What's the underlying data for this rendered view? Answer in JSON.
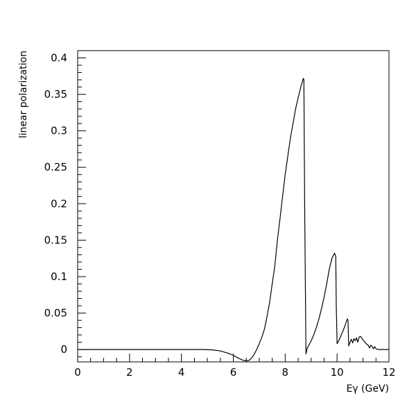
{
  "chart_data": {
    "type": "line",
    "title": "",
    "xlabel": "Eγ (GeV)",
    "ylabel": "linear polarization",
    "xlim": [
      0,
      12
    ],
    "ylim": [
      -0.017,
      0.41
    ],
    "grid": false,
    "x_ticks": [
      0,
      2,
      4,
      6,
      8,
      10,
      12
    ],
    "y_ticks": [
      0,
      0.05,
      0.1,
      0.15,
      0.2,
      0.25,
      0.3,
      0.35,
      0.4
    ],
    "x_tick_labels": [
      "0",
      "2",
      "4",
      "6",
      "8",
      "10",
      "12"
    ],
    "y_tick_labels": [
      "0",
      "0.05",
      "0.1",
      "0.15",
      "0.2",
      "0.25",
      "0.3",
      "0.35",
      "0.4"
    ],
    "line_color": "#000000",
    "series": [
      {
        "x": [
          0,
          4.8,
          5.2,
          5.5,
          5.8,
          6.0,
          6.2,
          6.4,
          6.5,
          6.6,
          6.7,
          6.8,
          6.9,
          7.0,
          7.1,
          7.2,
          7.3,
          7.4,
          7.5,
          7.6,
          7.7,
          7.8,
          7.9,
          8.0,
          8.1,
          8.2,
          8.3,
          8.4,
          8.5,
          8.6,
          8.7,
          8.72,
          8.75,
          8.8,
          8.85,
          8.9,
          9.0,
          9.1,
          9.2,
          9.3,
          9.4,
          9.5,
          9.6,
          9.7,
          9.8,
          9.9,
          9.95,
          9.97,
          10.0,
          10.05,
          10.1,
          10.2,
          10.3,
          10.35,
          10.4,
          10.42,
          10.45,
          10.5,
          10.55,
          10.6,
          10.65,
          10.7,
          10.75,
          10.8,
          10.85,
          10.9,
          10.95,
          11.0,
          11.05,
          11.1,
          11.15,
          11.2,
          11.25,
          11.3,
          11.35,
          11.4,
          11.45,
          11.5,
          11.6,
          11.8,
          12.0
        ],
        "y": [
          0,
          0,
          -0.0005,
          -0.002,
          -0.005,
          -0.008,
          -0.012,
          -0.015,
          -0.0155,
          -0.015,
          -0.012,
          -0.007,
          0,
          0.008,
          0.017,
          0.028,
          0.045,
          0.065,
          0.09,
          0.115,
          0.15,
          0.18,
          0.21,
          0.24,
          0.265,
          0.29,
          0.31,
          0.33,
          0.345,
          0.36,
          0.372,
          0.37,
          0.2,
          -0.006,
          0.002,
          0.005,
          0.012,
          0.02,
          0.03,
          0.042,
          0.056,
          0.072,
          0.09,
          0.11,
          0.125,
          0.132,
          0.128,
          0.06,
          0.008,
          0.011,
          0.015,
          0.023,
          0.032,
          0.038,
          0.042,
          0.04,
          0.005,
          0.01,
          0.014,
          0.009,
          0.015,
          0.012,
          0.016,
          0.01,
          0.017,
          0.018,
          0.016,
          0.013,
          0.011,
          0.009,
          0.007,
          0.006,
          0.002,
          0.006,
          0.004,
          0.001,
          0.004,
          0.001,
          0,
          0,
          0
        ]
      }
    ]
  }
}
